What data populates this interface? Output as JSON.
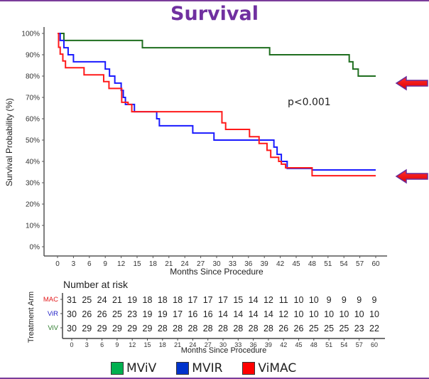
{
  "chart_data": {
    "type": "line",
    "title": "Survival",
    "xlabel": "Months Since Procedure",
    "ylabel": "Survival Probability (%)",
    "xlim": [
      0,
      60
    ],
    "ylim": [
      0,
      100
    ],
    "x_ticks": [
      0,
      3,
      6,
      9,
      12,
      15,
      18,
      21,
      24,
      27,
      30,
      33,
      36,
      39,
      42,
      45,
      48,
      51,
      54,
      57,
      60
    ],
    "y_ticks": [
      0,
      10,
      20,
      30,
      40,
      50,
      60,
      70,
      80,
      90,
      100
    ],
    "y_tick_labels": [
      "0%",
      "10%",
      "20%",
      "30%",
      "40%",
      "50%",
      "60%",
      "70%",
      "80%",
      "90%",
      "100%"
    ],
    "grid": false,
    "annotation": "p<0.001",
    "series": [
      {
        "name": "MViV",
        "risk_label": "ViV",
        "color": "#1f6e1f",
        "steps": [
          [
            0,
            100
          ],
          [
            1.2,
            96.7
          ],
          [
            16,
            93.3
          ],
          [
            40,
            90
          ],
          [
            55,
            86.7
          ],
          [
            55.7,
            83.3
          ],
          [
            56.7,
            80
          ],
          [
            60,
            80
          ]
        ]
      },
      {
        "name": "MVIR",
        "risk_label": "ViR",
        "color": "#1a1aff",
        "steps": [
          [
            0,
            100
          ],
          [
            0.5,
            96.7
          ],
          [
            1.2,
            93.3
          ],
          [
            2,
            90
          ],
          [
            3,
            86.7
          ],
          [
            9,
            83.3
          ],
          [
            9.8,
            80
          ],
          [
            10.8,
            76.7
          ],
          [
            12,
            73.3
          ],
          [
            12.4,
            70
          ],
          [
            12.8,
            66.7
          ],
          [
            14.5,
            63.3
          ],
          [
            18.7,
            60
          ],
          [
            19.2,
            56.7
          ],
          [
            25.5,
            53.3
          ],
          [
            29.5,
            50
          ],
          [
            40.8,
            46.7
          ],
          [
            41.4,
            43.3
          ],
          [
            42.2,
            40
          ],
          [
            43.3,
            36.7
          ],
          [
            48,
            36
          ],
          [
            60,
            36
          ]
        ]
      },
      {
        "name": "ViMAC",
        "risk_label": "MAC",
        "color": "#ff1a1a",
        "steps": [
          [
            0,
            100
          ],
          [
            0.2,
            93.5
          ],
          [
            0.5,
            90.3
          ],
          [
            1,
            87.1
          ],
          [
            1.5,
            83.9
          ],
          [
            5,
            80.6
          ],
          [
            8.7,
            77.4
          ],
          [
            9.7,
            74.2
          ],
          [
            12.1,
            67.7
          ],
          [
            13.3,
            66.7
          ],
          [
            14,
            63.3
          ],
          [
            31,
            58.1
          ],
          [
            31.7,
            55
          ],
          [
            36.2,
            51.6
          ],
          [
            38,
            48.4
          ],
          [
            39.5,
            45.2
          ],
          [
            40.2,
            41.9
          ],
          [
            41.7,
            40.0
          ],
          [
            42.2,
            38.7
          ],
          [
            43,
            37.0
          ],
          [
            48,
            33.3
          ],
          [
            60,
            33.3
          ]
        ]
      }
    ],
    "risk_table": {
      "title": "Number at risk",
      "ylabel": "Treatment Arm",
      "xlabel": "Months Since Procedure",
      "times": [
        0,
        3,
        6,
        9,
        12,
        15,
        18,
        21,
        24,
        27,
        30,
        33,
        36,
        39,
        42,
        45,
        48,
        51,
        54,
        57,
        60
      ],
      "rows": [
        {
          "label": "MAC",
          "color": "#e31a1c",
          "values": [
            31,
            25,
            24,
            21,
            19,
            18,
            18,
            18,
            17,
            17,
            17,
            15,
            14,
            12,
            11,
            10,
            10,
            9,
            9,
            9,
            9
          ]
        },
        {
          "label": "ViR",
          "color": "#2525c8",
          "values": [
            30,
            26,
            26,
            25,
            23,
            19,
            19,
            17,
            16,
            16,
            14,
            14,
            14,
            14,
            12,
            10,
            10,
            10,
            10,
            10,
            10
          ]
        },
        {
          "label": "ViV",
          "color": "#2a7a2a",
          "values": [
            30,
            29,
            29,
            29,
            29,
            29,
            28,
            28,
            28,
            28,
            28,
            28,
            28,
            28,
            26,
            26,
            25,
            25,
            25,
            23,
            22
          ]
        }
      ]
    },
    "legend": {
      "placement": "bottom",
      "items": [
        {
          "label": "MViV",
          "color": "#00b050"
        },
        {
          "label": "MVIR",
          "color": "#0033cc"
        },
        {
          "label": "ViMAC",
          "color": "#ff0000"
        }
      ]
    },
    "arrows": [
      {
        "points_to": "MViV",
        "at_percent": 80
      },
      {
        "points_to": "MVIR/ViMAC",
        "at_percent": 35
      }
    ]
  }
}
